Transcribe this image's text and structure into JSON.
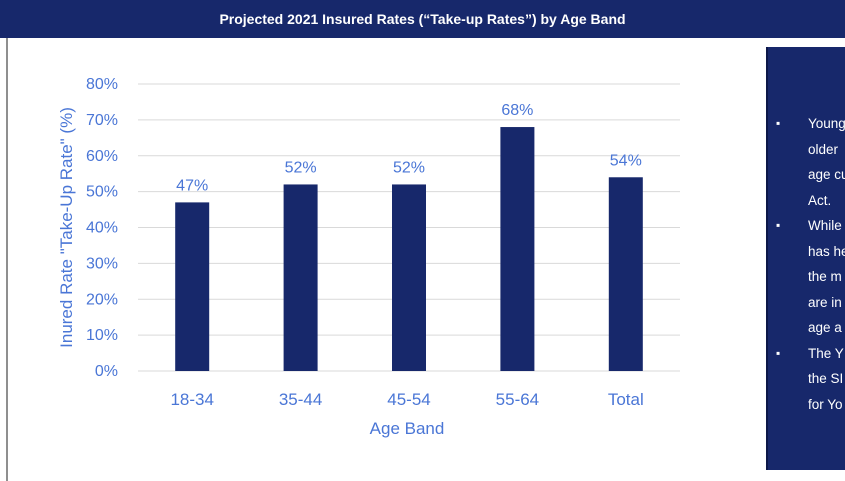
{
  "header": {
    "title": "Projected 2021 Insured Rates (“Take-up Rates”) by Age Band"
  },
  "chart_data": {
    "type": "bar",
    "title": "Projected 2021 Insured Rates (“Take-up Rates”) by Age Band",
    "categories": [
      "18-34",
      "35-44",
      "45-54",
      "55-64",
      "Total"
    ],
    "values": [
      47,
      52,
      52,
      68,
      54
    ],
    "data_labels": [
      "47%",
      "52%",
      "52%",
      "68%",
      "54%"
    ],
    "xlabel": "Age Band",
    "ylabel": "Inured Rate \"Take-Up Rate\" (%)",
    "ylim": [
      0,
      80
    ],
    "yticks": [
      "0%",
      "10%",
      "20%",
      "30%",
      "40%",
      "50%",
      "60%",
      "70%",
      "80%"
    ],
    "grid": true,
    "bar_color": "#17286b",
    "text_color": "#4a76d6"
  },
  "side_panel": {
    "bullets": [
      {
        "lines": [
          "Young",
          "older",
          "age cu",
          "Act."
        ]
      },
      {
        "lines": [
          "While",
          "has he",
          "the m",
          "are in",
          "age a"
        ]
      },
      {
        "lines": [
          "The Y",
          "the SI",
          "for Yo"
        ]
      }
    ]
  }
}
